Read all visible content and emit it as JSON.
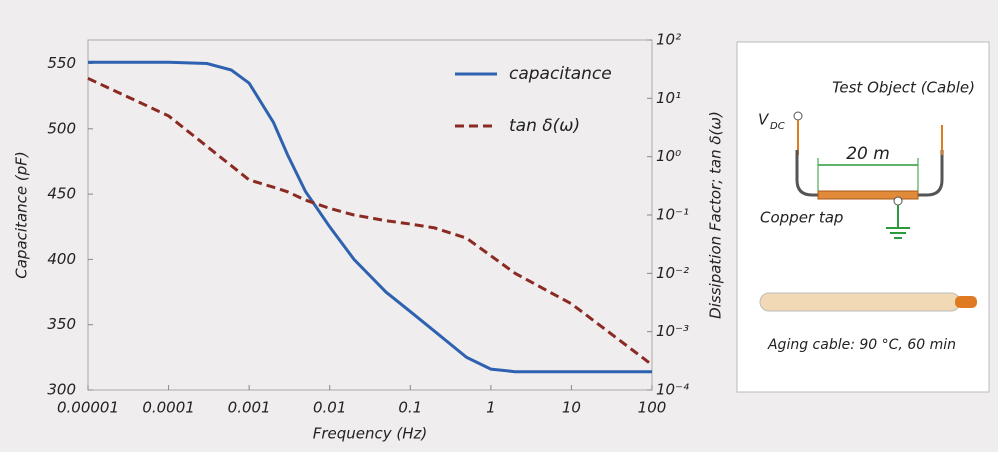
{
  "chart_data": {
    "type": "line",
    "x_label": "Frequency (Hz)",
    "y_label": "Capacitance (pF)",
    "y2_label": "Dissipation Factor; tan δ(ω)",
    "xscale": "log",
    "y2scale": "log",
    "legend": "upper right",
    "xlim": [
      1e-05,
      100
    ],
    "xticks": [
      1e-05,
      0.0001,
      0.001,
      0.01,
      0.1,
      1,
      10,
      100
    ],
    "ylim": [
      300,
      568
    ],
    "yticks": [
      300,
      350,
      400,
      450,
      500,
      550
    ],
    "y2lim": [
      0.0001,
      100
    ],
    "y2ticks": [
      {
        "value": 0.0001,
        "label": "10⁻⁴"
      },
      {
        "value": 0.001,
        "label": "10⁻³"
      },
      {
        "value": 0.01,
        "label": "10⁻²"
      },
      {
        "value": 0.1,
        "label": "10⁻¹"
      },
      {
        "value": 1,
        "label": "10⁰"
      },
      {
        "value": 10,
        "label": "10¹"
      },
      {
        "value": 100,
        "label": "10²"
      }
    ],
    "x": [
      1e-05,
      0.0001,
      0.0003,
      0.0006,
      0.001,
      0.002,
      0.003,
      0.005,
      0.01,
      0.02,
      0.05,
      0.1,
      0.2,
      0.5,
      1,
      2,
      10,
      100
    ],
    "series": [
      {
        "name": "capacitance",
        "color": "#2e62b0",
        "dash": "solid",
        "values": [
          551,
          551,
          550,
          545,
          535,
          505,
          480,
          452,
          425,
          400,
          375,
          360,
          345,
          325,
          316,
          314,
          314,
          314
        ]
      },
      {
        "name": "tan δ(ω)",
        "color": "#8b2a22",
        "dash": "dashed",
        "axis": "y2",
        "values": [
          22,
          5,
          1.5,
          0.7,
          0.4,
          0.3,
          0.25,
          0.18,
          0.13,
          0.1,
          0.08,
          0.07,
          0.06,
          0.04,
          0.02,
          0.01,
          0.003,
          0.00027
        ]
      }
    ]
  },
  "diagram": {
    "title": "Test Object (Cable)",
    "vdc": "V",
    "vdc_sub": "DC",
    "length": "20 m",
    "tap": "Copper tap",
    "aging": "Aging cable: 90 °C, 60 min"
  }
}
